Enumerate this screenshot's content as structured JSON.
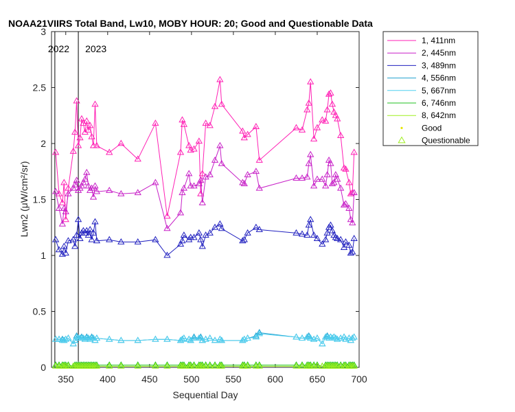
{
  "chart_data": {
    "type": "line",
    "title": "NOAA21VIIRS Total Band, Lw10, MOBY HOUR: 20;  Good and Questionable Data",
    "xlabel": "Sequential Day",
    "ylabel": "Lwn2 (μW/cm²/sr)",
    "xlim": [
      333,
      700
    ],
    "ylim": [
      0,
      3
    ],
    "xticks": [
      350,
      400,
      450,
      500,
      550,
      600,
      650,
      700
    ],
    "yticks": [
      0,
      0.5,
      1,
      1.5,
      2,
      2.5,
      3
    ],
    "ytick_labels": [
      "0",
      "0.5",
      "1",
      "1.5",
      "2",
      "2.5",
      "3"
    ],
    "grid": false,
    "legend_position": "outside-top-right",
    "year_markers": [
      {
        "x": 337,
        "label": "2022"
      },
      {
        "x": 365,
        "label": "2023"
      }
    ],
    "x": [
      338,
      342,
      346,
      348,
      350,
      353,
      359,
      361,
      363,
      365,
      367,
      369,
      371,
      373,
      375,
      377,
      379,
      381,
      383,
      385,
      387,
      402,
      416,
      436,
      457,
      471,
      487,
      489,
      491,
      497,
      499,
      503,
      509,
      511,
      513,
      517,
      522,
      528,
      534,
      536,
      561,
      563,
      567,
      577,
      581,
      625,
      632,
      638,
      640,
      642,
      646,
      650,
      656,
      660,
      662,
      664,
      666,
      668,
      670,
      672,
      674,
      678,
      682,
      684,
      688,
      690,
      692,
      694
    ],
    "series": [
      {
        "name": "1, 411nm",
        "color": "#ff1fb4",
        "values": [
          1.92,
          1.55,
          1.47,
          1.65,
          1.32,
          1.6,
          1.93,
          2.1,
          2.38,
          1.98,
          2.05,
          2.22,
          2.18,
          2.1,
          2.2,
          2.12,
          2.16,
          2.06,
          1.98,
          2.35,
          1.98,
          1.92,
          2.0,
          1.86,
          2.18,
          1.35,
          1.92,
          2.21,
          2.17,
          1.98,
          1.94,
          1.95,
          2.02,
          1.55,
          1.73,
          2.18,
          2.16,
          2.33,
          2.57,
          2.35,
          2.11,
          2.05,
          2.08,
          2.15,
          1.85,
          2.14,
          2.12,
          2.3,
          2.36,
          2.55,
          2.04,
          2.14,
          2.21,
          2.2,
          2.3,
          2.44,
          2.45,
          2.35,
          2.28,
          2.25,
          2.22,
          2.07,
          1.78,
          1.77,
          1.65,
          1.55,
          1.56,
          1.92
        ]
      },
      {
        "name": "2, 445nm",
        "color": "#c71fc7",
        "values": [
          1.57,
          1.42,
          1.28,
          1.42,
          1.39,
          1.55,
          1.6,
          1.63,
          1.67,
          1.58,
          1.6,
          1.62,
          1.65,
          1.68,
          1.74,
          1.62,
          1.58,
          1.6,
          1.52,
          1.62,
          1.57,
          1.58,
          1.55,
          1.56,
          1.65,
          1.24,
          1.38,
          1.56,
          1.6,
          1.73,
          1.62,
          1.62,
          1.64,
          1.67,
          1.47,
          1.7,
          1.72,
          1.85,
          1.98,
          1.82,
          1.65,
          1.64,
          1.72,
          1.75,
          1.6,
          1.69,
          1.69,
          1.7,
          1.82,
          1.9,
          1.62,
          1.68,
          1.68,
          1.62,
          1.72,
          1.85,
          1.82,
          1.64,
          1.65,
          1.72,
          1.68,
          1.6,
          1.45,
          1.46,
          1.42,
          1.32,
          1.29,
          1.56
        ]
      },
      {
        "name": "3, 489nm",
        "color": "#1f1fbf",
        "values": [
          1.14,
          1.05,
          1.01,
          1.08,
          1.02,
          1.13,
          1.14,
          1.08,
          1.18,
          1.32,
          1.15,
          1.2,
          1.22,
          1.2,
          1.22,
          1.18,
          1.23,
          1.14,
          1.2,
          1.3,
          1.13,
          1.14,
          1.12,
          1.12,
          1.14,
          1.0,
          1.1,
          1.13,
          1.18,
          1.14,
          1.16,
          1.16,
          1.2,
          1.14,
          1.08,
          1.18,
          1.2,
          1.25,
          1.28,
          1.24,
          1.13,
          1.14,
          1.2,
          1.25,
          1.23,
          1.2,
          1.19,
          1.18,
          1.27,
          1.32,
          1.18,
          1.15,
          1.1,
          1.14,
          1.2,
          1.25,
          1.27,
          1.22,
          1.18,
          1.16,
          1.15,
          1.14,
          1.07,
          1.12,
          1.09,
          1.02,
          1.03,
          1.15
        ]
      },
      {
        "name": "4, 556nm",
        "color": "#1f9fcf",
        "values": [
          0.25,
          0.25,
          0.25,
          0.24,
          0.25,
          0.26,
          0.21,
          0.24,
          0.28,
          0.26,
          0.26,
          0.27,
          0.26,
          0.25,
          0.27,
          0.26,
          0.25,
          0.27,
          0.26,
          0.24,
          0.26,
          0.25,
          0.24,
          0.24,
          0.25,
          0.25,
          0.24,
          0.25,
          0.26,
          0.25,
          0.24,
          0.27,
          0.26,
          0.27,
          0.24,
          0.25,
          0.26,
          0.24,
          0.25,
          0.24,
          0.24,
          0.25,
          0.26,
          0.28,
          0.31,
          0.27,
          0.26,
          0.27,
          0.28,
          0.26,
          0.25,
          0.26,
          0.21,
          0.27,
          0.28,
          0.26,
          0.27,
          0.26,
          0.27,
          0.26,
          0.25,
          0.26,
          0.27,
          0.25,
          0.26,
          0.24,
          0.26,
          0.27
        ]
      },
      {
        "name": "5, 667nm",
        "color": "#4fcfef",
        "values": [
          0.25,
          0.25,
          0.24,
          0.24,
          0.25,
          0.26,
          0.21,
          0.24,
          0.27,
          0.26,
          0.26,
          0.26,
          0.26,
          0.25,
          0.26,
          0.26,
          0.25,
          0.26,
          0.26,
          0.24,
          0.26,
          0.25,
          0.24,
          0.24,
          0.25,
          0.25,
          0.24,
          0.25,
          0.26,
          0.25,
          0.24,
          0.26,
          0.26,
          0.26,
          0.24,
          0.25,
          0.26,
          0.24,
          0.25,
          0.24,
          0.24,
          0.25,
          0.26,
          0.27,
          0.3,
          0.27,
          0.26,
          0.27,
          0.27,
          0.26,
          0.25,
          0.26,
          0.21,
          0.27,
          0.27,
          0.26,
          0.27,
          0.26,
          0.27,
          0.26,
          0.25,
          0.26,
          0.27,
          0.25,
          0.26,
          0.24,
          0.26,
          0.27
        ]
      },
      {
        "name": "6, 746nm",
        "color": "#1fbf1f",
        "values": [
          0.02,
          0.02,
          0.02,
          0.02,
          0.02,
          0.02,
          0.01,
          0.02,
          0.02,
          0.02,
          0.02,
          0.02,
          0.02,
          0.02,
          0.02,
          0.02,
          0.02,
          0.02,
          0.02,
          0.02,
          0.02,
          0.02,
          0.02,
          0.02,
          0.02,
          0.02,
          0.02,
          0.02,
          0.02,
          0.02,
          0.02,
          0.02,
          0.02,
          0.02,
          0.02,
          0.02,
          0.02,
          0.02,
          0.02,
          0.02,
          0.02,
          0.02,
          0.02,
          0.02,
          0.02,
          0.02,
          0.02,
          0.02,
          0.02,
          0.02,
          0.02,
          0.02,
          0.01,
          0.02,
          0.02,
          0.02,
          0.02,
          0.02,
          0.02,
          0.02,
          0.02,
          0.02,
          0.02,
          0.02,
          0.02,
          0.02,
          0.02,
          0.02
        ]
      },
      {
        "name": "8, 642nm",
        "color": "#9fef1f",
        "values": [
          0.01,
          0.01,
          0.01,
          0.01,
          0.01,
          0.01,
          0.01,
          0.01,
          0.01,
          0.01,
          0.01,
          0.01,
          0.01,
          0.01,
          0.01,
          0.01,
          0.01,
          0.01,
          0.01,
          0.01,
          0.01,
          0.01,
          0.01,
          0.01,
          0.01,
          0.01,
          0.01,
          0.01,
          0.01,
          0.01,
          0.01,
          0.01,
          0.01,
          0.01,
          0.01,
          0.01,
          0.01,
          0.01,
          0.01,
          0.01,
          0.01,
          0.01,
          0.01,
          0.01,
          0.01,
          0.01,
          0.01,
          0.01,
          0.01,
          0.01,
          0.01,
          0.01,
          0.01,
          0.01,
          0.01,
          0.01,
          0.01,
          0.01,
          0.01,
          0.01,
          0.01,
          0.01,
          0.01,
          0.01,
          0.01,
          0.01,
          0.01,
          0.01
        ]
      }
    ],
    "markers": [
      {
        "name": "Good",
        "symbol": "dot",
        "color": "#e6e600"
      },
      {
        "name": "Questionable",
        "symbol": "triangle",
        "color": "#9fef1f"
      }
    ]
  }
}
